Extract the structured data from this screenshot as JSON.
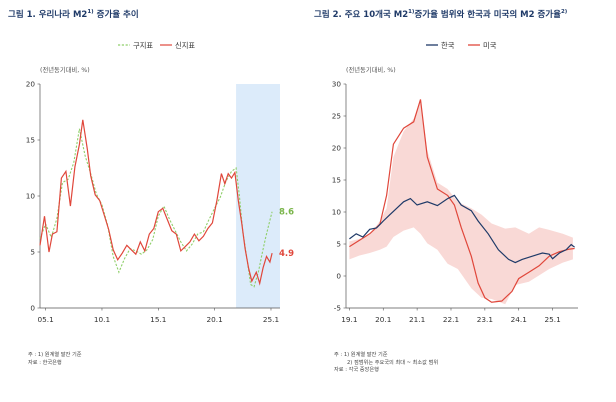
{
  "colors": {
    "new_index": "#e0473b",
    "old_index": "#8fcf6a",
    "old_label": "#7ab54a",
    "korea": "#1f3a68",
    "us": "#e0473b",
    "band": "#f9d9d6",
    "highlight": "#dcebfa",
    "title": "#1f3a68"
  },
  "chart_data": [
    {
      "type": "line",
      "title": "그림 1. 우리나라 M2",
      "title_sup": "1)",
      "title_suffix": " 증가율 추이",
      "unit": "(전년동기대비, %)",
      "ylim": [
        0,
        20
      ],
      "yticks": [
        "0",
        "5",
        "10",
        "15",
        "20"
      ],
      "xlim": [
        2004.5,
        2025.8
      ],
      "xticks": [
        {
          "x": 2005,
          "label": "05.1"
        },
        {
          "x": 2010,
          "label": "10.1"
        },
        {
          "x": 2015,
          "label": "15.1"
        },
        {
          "x": 2020,
          "label": "20.1"
        },
        {
          "x": 2025,
          "label": "25.1"
        }
      ],
      "highlight_range": [
        2021.9,
        2025.8
      ],
      "legend": [
        "구지표",
        "신지표"
      ],
      "legend_position": "top-center",
      "series": [
        {
          "name": "구지표",
          "style": "dashed",
          "points": [
            [
              2004.5,
              6.2
            ],
            [
              2005.0,
              7.5
            ],
            [
              2005.5,
              6.3
            ],
            [
              2006.0,
              8.0
            ],
            [
              2006.5,
              11.2
            ],
            [
              2007.0,
              11.5
            ],
            [
              2007.5,
              13.0
            ],
            [
              2008.0,
              16.0
            ],
            [
              2008.5,
              13.6
            ],
            [
              2009.0,
              12.0
            ],
            [
              2009.5,
              10.2
            ],
            [
              2010.0,
              9.2
            ],
            [
              2010.5,
              7.4
            ],
            [
              2011.0,
              4.6
            ],
            [
              2011.5,
              3.2
            ],
            [
              2012.0,
              4.4
            ],
            [
              2012.5,
              5.3
            ],
            [
              2013.0,
              5.1
            ],
            [
              2013.5,
              4.8
            ],
            [
              2014.0,
              5.2
            ],
            [
              2014.5,
              6.1
            ],
            [
              2015.0,
              8.2
            ],
            [
              2015.5,
              9.1
            ],
            [
              2016.0,
              7.9
            ],
            [
              2016.5,
              6.9
            ],
            [
              2017.0,
              5.9
            ],
            [
              2017.5,
              5.1
            ],
            [
              2018.0,
              5.7
            ],
            [
              2018.5,
              6.6
            ],
            [
              2019.0,
              6.8
            ],
            [
              2019.5,
              7.9
            ],
            [
              2020.0,
              8.9
            ],
            [
              2020.5,
              9.9
            ],
            [
              2021.0,
              11.3
            ],
            [
              2021.5,
              12.2
            ],
            [
              2021.9,
              12.5
            ],
            [
              2022.2,
              10.0
            ],
            [
              2022.5,
              6.8
            ],
            [
              2022.9,
              4.2
            ],
            [
              2023.2,
              2.1
            ],
            [
              2023.5,
              1.9
            ],
            [
              2023.9,
              3.3
            ],
            [
              2024.2,
              4.8
            ],
            [
              2024.5,
              6.2
            ],
            [
              2024.8,
              7.4
            ],
            [
              2025.1,
              8.6
            ]
          ]
        },
        {
          "name": "신지표",
          "style": "solid",
          "points": [
            [
              2004.5,
              5.6
            ],
            [
              2004.9,
              8.2
            ],
            [
              2005.3,
              5.0
            ],
            [
              2005.6,
              6.6
            ],
            [
              2006.0,
              6.8
            ],
            [
              2006.4,
              11.6
            ],
            [
              2006.8,
              12.2
            ],
            [
              2007.2,
              9.1
            ],
            [
              2007.6,
              12.6
            ],
            [
              2008.0,
              14.6
            ],
            [
              2008.3,
              16.8
            ],
            [
              2008.7,
              14.2
            ],
            [
              2009.0,
              11.8
            ],
            [
              2009.4,
              10.1
            ],
            [
              2009.8,
              9.6
            ],
            [
              2010.2,
              8.3
            ],
            [
              2010.6,
              7.0
            ],
            [
              2011.0,
              5.2
            ],
            [
              2011.4,
              4.3
            ],
            [
              2011.8,
              4.9
            ],
            [
              2012.2,
              5.6
            ],
            [
              2012.6,
              5.2
            ],
            [
              2013.0,
              4.8
            ],
            [
              2013.4,
              5.9
            ],
            [
              2013.8,
              5.1
            ],
            [
              2014.2,
              6.6
            ],
            [
              2014.6,
              7.1
            ],
            [
              2015.0,
              8.6
            ],
            [
              2015.4,
              8.9
            ],
            [
              2015.8,
              7.9
            ],
            [
              2016.2,
              6.9
            ],
            [
              2016.6,
              6.6
            ],
            [
              2017.0,
              5.1
            ],
            [
              2017.4,
              5.5
            ],
            [
              2017.8,
              5.9
            ],
            [
              2018.2,
              6.6
            ],
            [
              2018.6,
              6.0
            ],
            [
              2019.0,
              6.4
            ],
            [
              2019.4,
              7.1
            ],
            [
              2019.8,
              7.6
            ],
            [
              2020.2,
              9.6
            ],
            [
              2020.6,
              12.0
            ],
            [
              2020.9,
              11.1
            ],
            [
              2021.2,
              12.0
            ],
            [
              2021.5,
              11.6
            ],
            [
              2021.8,
              12.1
            ],
            [
              2022.1,
              9.6
            ],
            [
              2022.4,
              7.6
            ],
            [
              2022.7,
              5.3
            ],
            [
              2023.0,
              3.6
            ],
            [
              2023.3,
              2.4
            ],
            [
              2023.7,
              3.2
            ],
            [
              2024.0,
              2.2
            ],
            [
              2024.3,
              3.6
            ],
            [
              2024.6,
              4.6
            ],
            [
              2024.9,
              4.1
            ],
            [
              2025.1,
              4.9
            ]
          ]
        }
      ],
      "end_labels": [
        {
          "series": "구지표",
          "text": "8.6"
        },
        {
          "series": "신지표",
          "text": "4.9"
        }
      ],
      "notes": [
        "주 : 1) 원계열 말잔 기준",
        "자료 : 한국은행"
      ]
    },
    {
      "type": "line",
      "title": "그림 2. 주요 10개국 M2",
      "title_sup": "1)",
      "title_suffix": "증가율 범위와 한국과 미국의 M2 증가율",
      "title_sup2": "2)",
      "unit": "(전년동기대비, %)",
      "ylim": [
        -5,
        30
      ],
      "yticks": [
        "-5",
        "0",
        "5",
        "10",
        "15",
        "20",
        "25",
        "30"
      ],
      "xlim": [
        2018.9,
        2025.75
      ],
      "xticks": [
        {
          "x": 2019,
          "label": "19.1"
        },
        {
          "x": 2020,
          "label": "20.1"
        },
        {
          "x": 2021,
          "label": "21.1"
        },
        {
          "x": 2022,
          "label": "22.1"
        },
        {
          "x": 2023,
          "label": "23.1"
        },
        {
          "x": 2024,
          "label": "24.1"
        },
        {
          "x": 2025,
          "label": "25.1"
        }
      ],
      "legend": [
        "한국",
        "미국"
      ],
      "legend_position": "top-center",
      "band": {
        "upper": [
          [
            2019.0,
            5.4
          ],
          [
            2019.3,
            5.8
          ],
          [
            2019.6,
            6.4
          ],
          [
            2019.9,
            8.6
          ],
          [
            2020.1,
            10.6
          ],
          [
            2020.3,
            18.6
          ],
          [
            2020.6,
            22.6
          ],
          [
            2020.9,
            24.6
          ],
          [
            2021.1,
            27.6
          ],
          [
            2021.3,
            19.6
          ],
          [
            2021.6,
            14.6
          ],
          [
            2021.9,
            13.6
          ],
          [
            2022.2,
            11.6
          ],
          [
            2022.6,
            10.6
          ],
          [
            2022.9,
            9.6
          ],
          [
            2023.2,
            8.2
          ],
          [
            2023.6,
            7.4
          ],
          [
            2023.9,
            7.6
          ],
          [
            2024.3,
            6.6
          ],
          [
            2024.6,
            7.6
          ],
          [
            2024.9,
            7.2
          ],
          [
            2025.3,
            6.6
          ],
          [
            2025.6,
            6.0
          ]
        ],
        "lower": [
          [
            2019.0,
            2.6
          ],
          [
            2019.3,
            3.2
          ],
          [
            2019.6,
            3.6
          ],
          [
            2019.9,
            4.1
          ],
          [
            2020.1,
            4.6
          ],
          [
            2020.3,
            6.1
          ],
          [
            2020.6,
            7.1
          ],
          [
            2020.9,
            7.6
          ],
          [
            2021.1,
            6.6
          ],
          [
            2021.3,
            5.1
          ],
          [
            2021.6,
            4.1
          ],
          [
            2021.9,
            1.9
          ],
          [
            2022.2,
            1.1
          ],
          [
            2022.6,
            -1.9
          ],
          [
            2022.9,
            -3.4
          ],
          [
            2023.2,
            -3.6
          ],
          [
            2023.6,
            -4.4
          ],
          [
            2023.9,
            -1.4
          ],
          [
            2024.3,
            -0.9
          ],
          [
            2024.6,
            0.1
          ],
          [
            2024.9,
            1.1
          ],
          [
            2025.3,
            2.1
          ],
          [
            2025.6,
            2.6
          ]
        ]
      },
      "series": [
        {
          "name": "한국",
          "points": [
            [
              2019.0,
              5.8
            ],
            [
              2019.2,
              6.6
            ],
            [
              2019.4,
              6.1
            ],
            [
              2019.6,
              7.3
            ],
            [
              2019.8,
              7.5
            ],
            [
              2020.0,
              8.6
            ],
            [
              2020.2,
              9.6
            ],
            [
              2020.4,
              10.6
            ],
            [
              2020.6,
              11.6
            ],
            [
              2020.8,
              12.1
            ],
            [
              2021.0,
              11.1
            ],
            [
              2021.3,
              11.6
            ],
            [
              2021.6,
              11.0
            ],
            [
              2021.9,
              12.1
            ],
            [
              2022.1,
              12.6
            ],
            [
              2022.3,
              11.1
            ],
            [
              2022.6,
              10.2
            ],
            [
              2022.8,
              8.6
            ],
            [
              2023.1,
              6.6
            ],
            [
              2023.4,
              4.1
            ],
            [
              2023.7,
              2.6
            ],
            [
              2023.9,
              2.1
            ],
            [
              2024.1,
              2.6
            ],
            [
              2024.4,
              3.1
            ],
            [
              2024.7,
              3.6
            ],
            [
              2024.9,
              3.4
            ],
            [
              2025.0,
              2.7
            ],
            [
              2025.2,
              3.6
            ],
            [
              2025.4,
              4.1
            ],
            [
              2025.55,
              4.9
            ],
            [
              2025.65,
              4.5
            ]
          ]
        },
        {
          "name": "미국",
          "points": [
            [
              2019.0,
              4.6
            ],
            [
              2019.3,
              5.6
            ],
            [
              2019.6,
              6.6
            ],
            [
              2019.9,
              8.1
            ],
            [
              2020.1,
              12.6
            ],
            [
              2020.3,
              20.6
            ],
            [
              2020.6,
              23.1
            ],
            [
              2020.9,
              24.1
            ],
            [
              2021.1,
              27.6
            ],
            [
              2021.3,
              18.6
            ],
            [
              2021.6,
              13.6
            ],
            [
              2021.9,
              12.6
            ],
            [
              2022.1,
              11.1
            ],
            [
              2022.3,
              7.6
            ],
            [
              2022.6,
              3.1
            ],
            [
              2022.8,
              -1.1
            ],
            [
              2023.0,
              -3.4
            ],
            [
              2023.2,
              -4.1
            ],
            [
              2023.5,
              -3.9
            ],
            [
              2023.8,
              -2.4
            ],
            [
              2024.0,
              -0.4
            ],
            [
              2024.3,
              0.6
            ],
            [
              2024.6,
              1.6
            ],
            [
              2024.9,
              3.1
            ],
            [
              2025.2,
              3.8
            ],
            [
              2025.5,
              4.2
            ],
            [
              2025.65,
              4.3
            ]
          ]
        }
      ],
      "notes": [
        "주 : 1) 원계열 말잔 기준",
        "2) 점범위는 주요국의 최대 ~ 최소값 범위",
        "자료 : 각국 중앙은행"
      ]
    }
  ]
}
